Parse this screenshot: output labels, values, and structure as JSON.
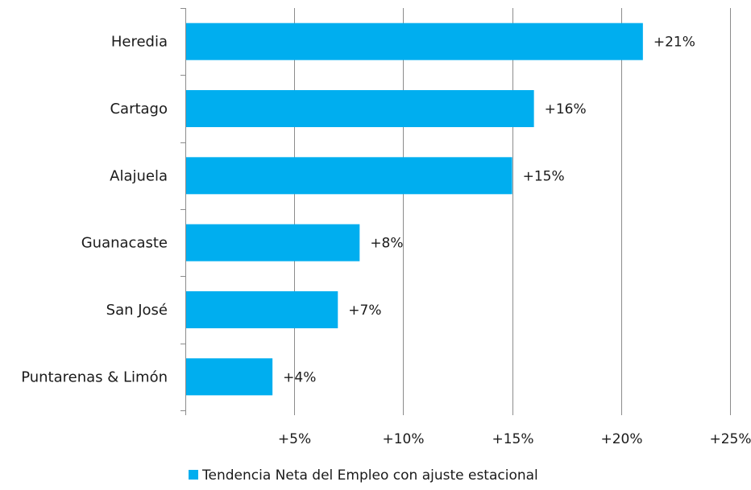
{
  "chart_data": {
    "type": "bar",
    "orientation": "horizontal",
    "categories": [
      "Heredia",
      "Cartago",
      "Alajuela",
      "Guanacaste",
      "San José",
      "Puntarenas & Limón"
    ],
    "series": [
      {
        "name": "Tendencia Neta del Empleo con ajuste estacional",
        "values": [
          21,
          16,
          15,
          8,
          7,
          4
        ],
        "data_labels": [
          "+21%",
          "+16%",
          "+15%",
          "+8%",
          "+7%",
          "+4%"
        ],
        "color": "#00AEEF"
      }
    ],
    "x_ticks": [
      0,
      5,
      10,
      15,
      20,
      25
    ],
    "x_tick_labels": [
      "",
      "+5%",
      "+10%",
      "+15%",
      "+20%",
      "+25%"
    ],
    "xlim": [
      0,
      25
    ],
    "grid": true,
    "legend_position": "bottom"
  }
}
